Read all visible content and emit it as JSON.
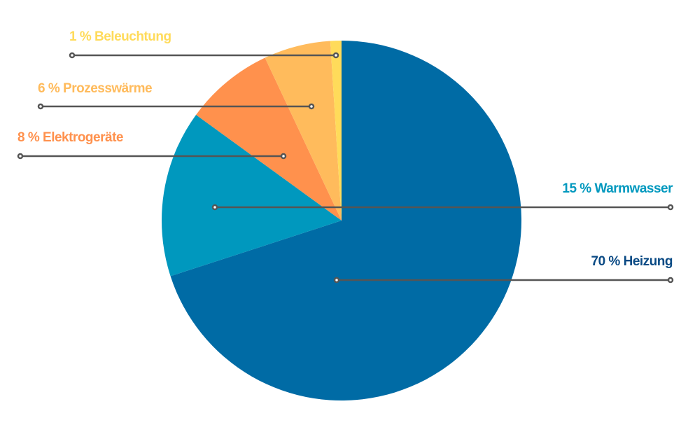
{
  "chart_data": {
    "type": "pie",
    "title": "",
    "center": [
      488,
      315
    ],
    "radius": 257,
    "start_angle_deg": 0,
    "direction": "clockwise",
    "slices": [
      {
        "label": "Heizung",
        "value": 70,
        "display": "70 % Heizung",
        "color": "#006BA5",
        "label_color": "#0A4A84"
      },
      {
        "label": "Warmwasser",
        "value": 15,
        "display": "15 % Warmwasser",
        "color": "#0098BE",
        "label_color": "#0098BE"
      },
      {
        "label": "Elektrogeräte",
        "value": 8,
        "display": "8 % Elektrogeräte",
        "color": "#FF914D",
        "label_color": "#FF914D"
      },
      {
        "label": "Prozesswärme",
        "value": 6,
        "display": "6 % Prozesswärme",
        "color": "#FFBB5C",
        "label_color": "#FFBB5C"
      },
      {
        "label": "Beleuchtung",
        "value": 1,
        "display": "1 % Beleuchtung",
        "color": "#FFDB5A",
        "label_color": "#FFDB5A"
      }
    ],
    "leader_line_color": "#555555"
  },
  "labels": {
    "beleuchtung": "1 % Beleuchtung",
    "prozesswaerme": "6 % Prozesswärme",
    "elektrogeraete": "8 % Elektrogeräte",
    "warmwasser": "15 % Warmwasser",
    "heizung": "70 % Heizung"
  }
}
